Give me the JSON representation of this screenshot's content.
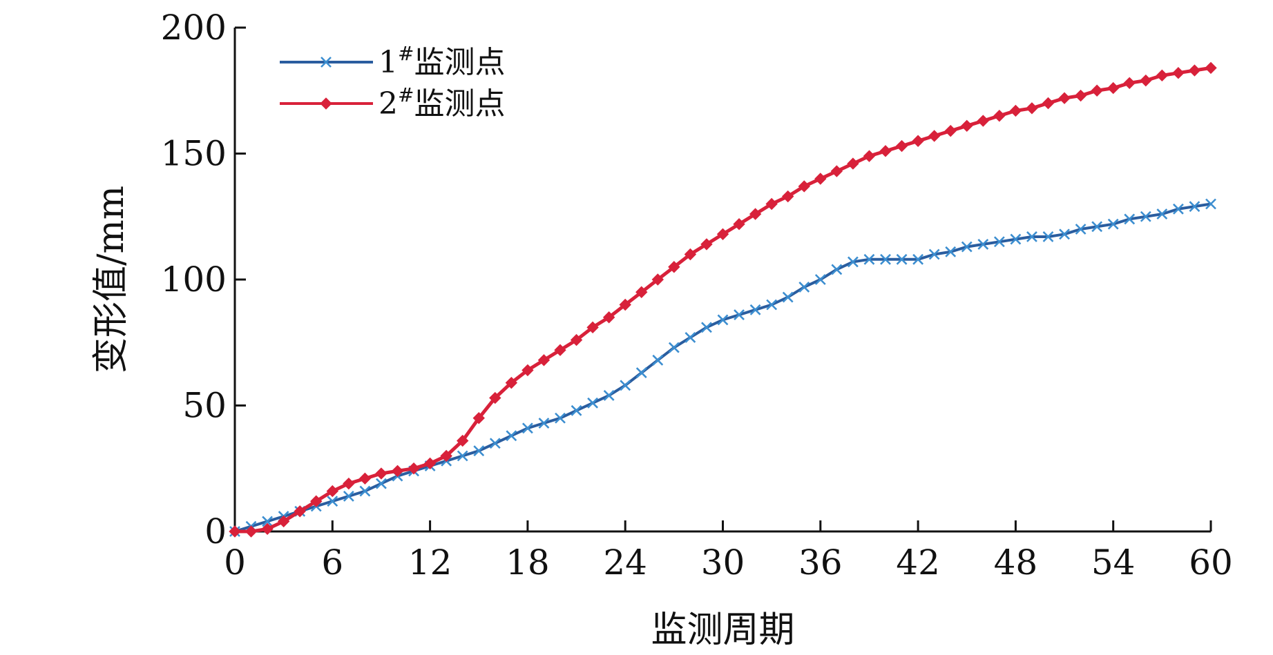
{
  "chart_data": {
    "type": "line",
    "title": "",
    "xlabel": "监测周期",
    "ylabel": "变形值/mm",
    "xlim": [
      0,
      60
    ],
    "ylim": [
      0,
      200
    ],
    "xticks": [
      "0",
      "6",
      "12",
      "18",
      "24",
      "30",
      "36",
      "42",
      "48",
      "54",
      "60"
    ],
    "yticks": [
      "0",
      "50",
      "100",
      "150",
      "200"
    ],
    "grid": false,
    "legend_position": "top-left",
    "series": [
      {
        "name": "1",
        "name_sup": "#",
        "name_suffix": "监测点",
        "color": "#2a5d9f",
        "marker": "x",
        "x": [
          0,
          1,
          2,
          3,
          4,
          5,
          6,
          7,
          8,
          9,
          10,
          11,
          12,
          13,
          14,
          15,
          16,
          17,
          18,
          19,
          20,
          21,
          22,
          23,
          24,
          25,
          26,
          27,
          28,
          29,
          30,
          31,
          32,
          33,
          34,
          35,
          36,
          37,
          38,
          39,
          40,
          41,
          42,
          43,
          44,
          45,
          46,
          47,
          48,
          49,
          50,
          51,
          52,
          53,
          54,
          55,
          56,
          57,
          58,
          59,
          60
        ],
        "y": [
          0,
          2,
          4,
          6,
          8,
          10,
          12,
          14,
          16,
          19,
          22,
          24,
          26,
          28,
          30,
          32,
          35,
          38,
          41,
          43,
          45,
          48,
          51,
          54,
          58,
          63,
          68,
          73,
          77,
          81,
          84,
          86,
          88,
          90,
          93,
          97,
          100,
          104,
          107,
          108,
          108,
          108,
          108,
          110,
          111,
          113,
          114,
          115,
          116,
          117,
          117,
          118,
          120,
          121,
          122,
          124,
          125,
          126,
          128,
          129,
          130
        ]
      },
      {
        "name": "2",
        "name_sup": "#",
        "name_suffix": "监测点",
        "color": "#d8213a",
        "marker": "diamond",
        "x": [
          0,
          1,
          2,
          3,
          4,
          5,
          6,
          7,
          8,
          9,
          10,
          11,
          12,
          13,
          14,
          15,
          16,
          17,
          18,
          19,
          20,
          21,
          22,
          23,
          24,
          25,
          26,
          27,
          28,
          29,
          30,
          31,
          32,
          33,
          34,
          35,
          36,
          37,
          38,
          39,
          40,
          41,
          42,
          43,
          44,
          45,
          46,
          47,
          48,
          49,
          50,
          51,
          52,
          53,
          54,
          55,
          56,
          57,
          58,
          59,
          60
        ],
        "y": [
          0,
          0,
          1,
          4,
          8,
          12,
          16,
          19,
          21,
          23,
          24,
          25,
          27,
          30,
          36,
          45,
          53,
          59,
          64,
          68,
          72,
          76,
          81,
          85,
          90,
          95,
          100,
          105,
          110,
          114,
          118,
          122,
          126,
          130,
          133,
          137,
          140,
          143,
          146,
          149,
          151,
          153,
          155,
          157,
          159,
          161,
          163,
          165,
          167,
          168,
          170,
          172,
          173,
          175,
          176,
          178,
          179,
          181,
          182,
          183,
          184
        ]
      }
    ]
  }
}
